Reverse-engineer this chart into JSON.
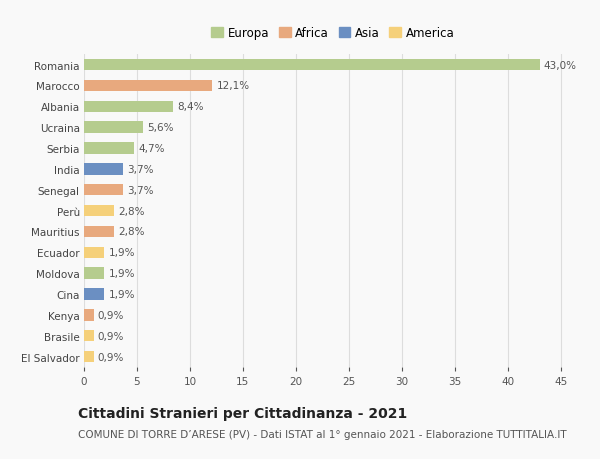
{
  "categories": [
    "Romania",
    "Marocco",
    "Albania",
    "Ucraina",
    "Serbia",
    "India",
    "Senegal",
    "Perù",
    "Mauritius",
    "Ecuador",
    "Moldova",
    "Cina",
    "Kenya",
    "Brasile",
    "El Salvador"
  ],
  "values": [
    43.0,
    12.1,
    8.4,
    5.6,
    4.7,
    3.7,
    3.7,
    2.8,
    2.8,
    1.9,
    1.9,
    1.9,
    0.9,
    0.9,
    0.9
  ],
  "labels": [
    "43,0%",
    "12,1%",
    "8,4%",
    "5,6%",
    "4,7%",
    "3,7%",
    "3,7%",
    "2,8%",
    "2,8%",
    "1,9%",
    "1,9%",
    "1,9%",
    "0,9%",
    "0,9%",
    "0,9%"
  ],
  "continents": [
    "Europa",
    "Africa",
    "Europa",
    "Europa",
    "Europa",
    "Asia",
    "Africa",
    "America",
    "Africa",
    "America",
    "Europa",
    "Asia",
    "Africa",
    "America",
    "America"
  ],
  "continent_colors": {
    "Europa": "#b5cc8e",
    "Africa": "#e8a97e",
    "Asia": "#6b8fc2",
    "America": "#f5d07a"
  },
  "legend_order": [
    "Europa",
    "Africa",
    "Asia",
    "America"
  ],
  "xlim": [
    0,
    47
  ],
  "xticks": [
    0,
    5,
    10,
    15,
    20,
    25,
    30,
    35,
    40,
    45
  ],
  "title": "Cittadini Stranieri per Cittadinanza - 2021",
  "subtitle": "COMUNE DI TORRE D’ARESE (PV) - Dati ISTAT al 1° gennaio 2021 - Elaborazione TUTTITALIA.IT",
  "background_color": "#f9f9f9",
  "grid_color": "#dddddd",
  "bar_height": 0.55,
  "label_fontsize": 7.5,
  "tick_fontsize": 7.5,
  "title_fontsize": 10,
  "subtitle_fontsize": 7.5
}
